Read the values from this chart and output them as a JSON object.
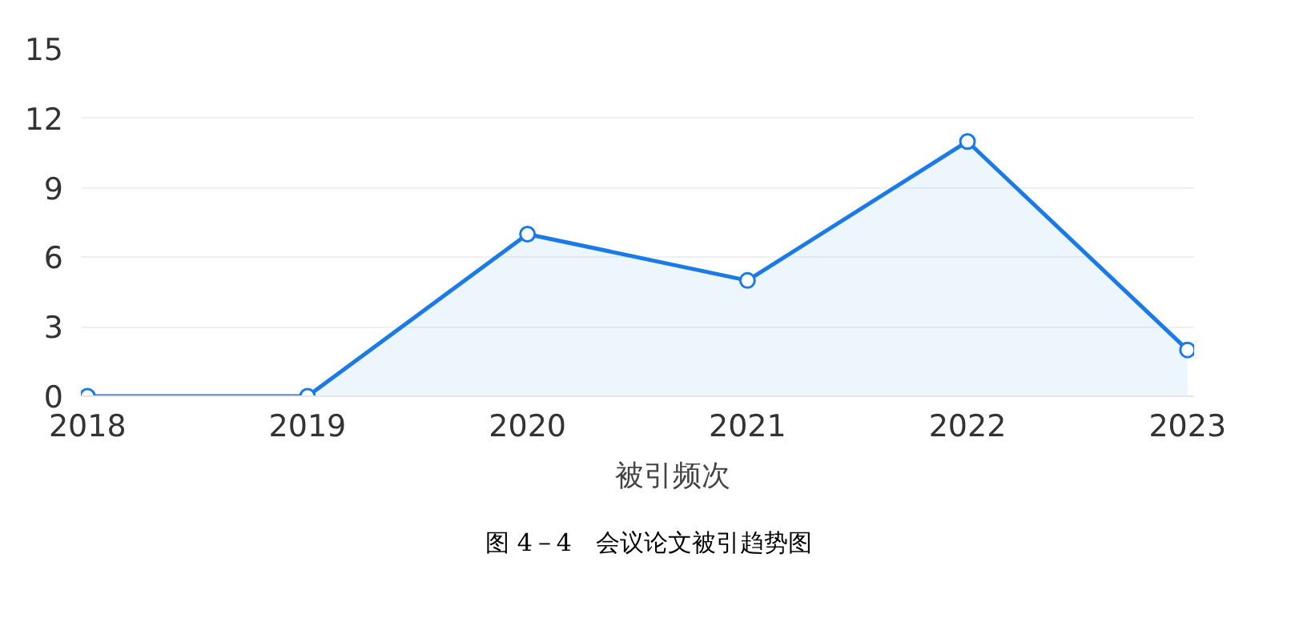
{
  "chart_data": {
    "type": "area",
    "categories": [
      "2018",
      "2019",
      "2020",
      "2021",
      "2022",
      "2023"
    ],
    "series": [
      {
        "name": "被引频次",
        "color": "#1a7be8",
        "values": [
          0,
          0,
          7,
          5,
          11,
          2
        ]
      }
    ],
    "ylim": [
      0,
      15
    ],
    "yticks": [
      0,
      3,
      6,
      9,
      12,
      15
    ],
    "grid": "y",
    "legend": "bottom",
    "marker": "circle",
    "annotations": [
      "图 4－4　会议论文被引趋势图"
    ]
  }
}
